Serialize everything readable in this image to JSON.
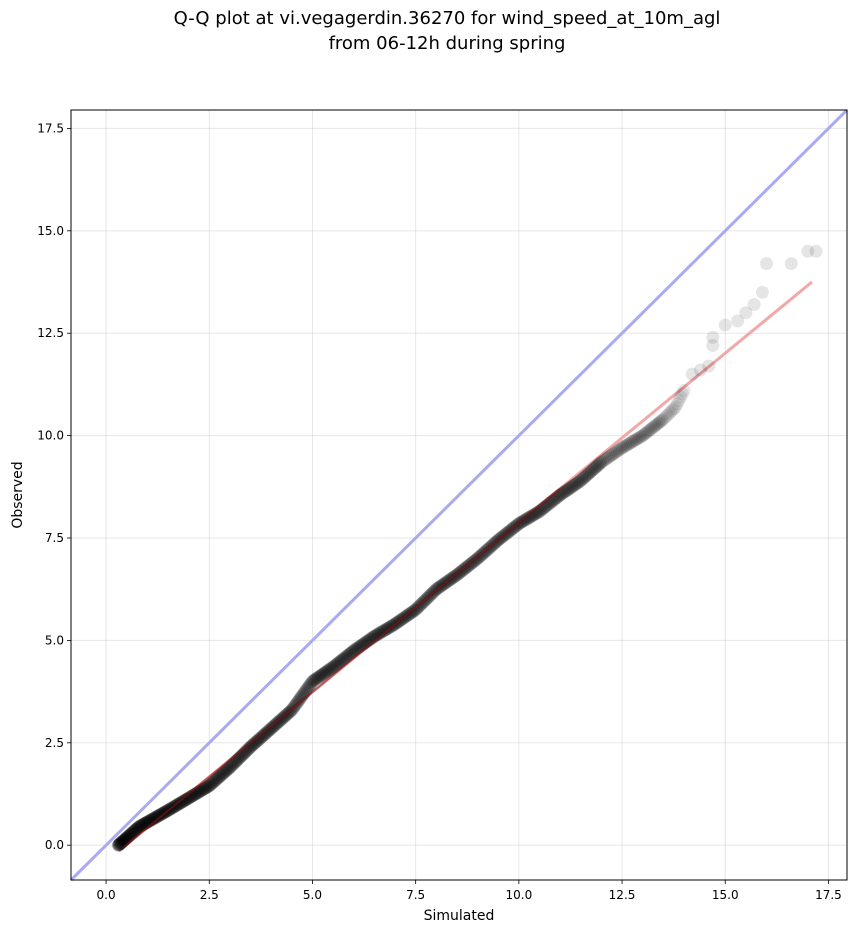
{
  "chart_data": {
    "type": "scatter",
    "title": "Q-Q plot at vi.vegagerdin.36270 for wind_speed_at_10m_agl",
    "subtitle": "from 06-12h during spring",
    "xlabel": "Simulated",
    "ylabel": "Observed",
    "xlim": [
      -0.85,
      17.95
    ],
    "ylim": [
      -0.85,
      17.95
    ],
    "xticks": [
      0.0,
      2.5,
      5.0,
      7.5,
      10.0,
      12.5,
      15.0,
      17.5
    ],
    "yticks": [
      0.0,
      2.5,
      5.0,
      7.5,
      10.0,
      12.5,
      15.0,
      17.5
    ],
    "xtick_labels": [
      "0.0",
      "2.5",
      "5.0",
      "7.5",
      "10.0",
      "12.5",
      "15.0",
      "17.5"
    ],
    "ytick_labels": [
      "0.0",
      "2.5",
      "5.0",
      "7.5",
      "10.0",
      "12.5",
      "15.0",
      "17.5"
    ],
    "grid": true,
    "colors": {
      "points": "#000000",
      "identity_line": "#aaaaf2",
      "fit_line": "#f0a8a8",
      "fit_line_dark": "#8b1a1a"
    },
    "quantile_curve": [
      [
        0.3,
        0.0
      ],
      [
        0.8,
        0.45
      ],
      [
        1.5,
        0.85
      ],
      [
        2.0,
        1.15
      ],
      [
        2.5,
        1.45
      ],
      [
        3.0,
        1.9
      ],
      [
        3.5,
        2.4
      ],
      [
        4.0,
        2.85
      ],
      [
        4.5,
        3.3
      ],
      [
        5.0,
        4.0
      ],
      [
        5.5,
        4.35
      ],
      [
        6.0,
        4.75
      ],
      [
        6.5,
        5.1
      ],
      [
        7.0,
        5.4
      ],
      [
        7.5,
        5.75
      ],
      [
        8.0,
        6.25
      ],
      [
        8.5,
        6.6
      ],
      [
        9.0,
        7.0
      ],
      [
        9.5,
        7.45
      ],
      [
        10.0,
        7.85
      ],
      [
        10.5,
        8.15
      ],
      [
        11.0,
        8.55
      ],
      [
        11.5,
        8.9
      ],
      [
        12.0,
        9.35
      ],
      [
        12.5,
        9.7
      ],
      [
        13.0,
        10.0
      ],
      [
        13.5,
        10.4
      ],
      [
        13.8,
        10.7
      ],
      [
        14.0,
        11.1
      ]
    ],
    "tail_points": [
      [
        14.2,
        11.5
      ],
      [
        14.4,
        11.6
      ],
      [
        14.6,
        11.7
      ],
      [
        14.7,
        12.2
      ],
      [
        14.7,
        12.4
      ],
      [
        15.0,
        12.7
      ],
      [
        15.3,
        12.8
      ],
      [
        15.5,
        13.0
      ],
      [
        15.7,
        13.2
      ],
      [
        15.9,
        13.5
      ],
      [
        16.0,
        14.2
      ],
      [
        16.6,
        14.2
      ],
      [
        17.0,
        14.5
      ],
      [
        17.2,
        14.5
      ]
    ],
    "identity_line": [
      [
        -0.85,
        -0.85
      ],
      [
        17.95,
        17.95
      ]
    ],
    "fit_line": [
      [
        0.3,
        -0.15
      ],
      [
        17.1,
        13.75
      ]
    ]
  }
}
